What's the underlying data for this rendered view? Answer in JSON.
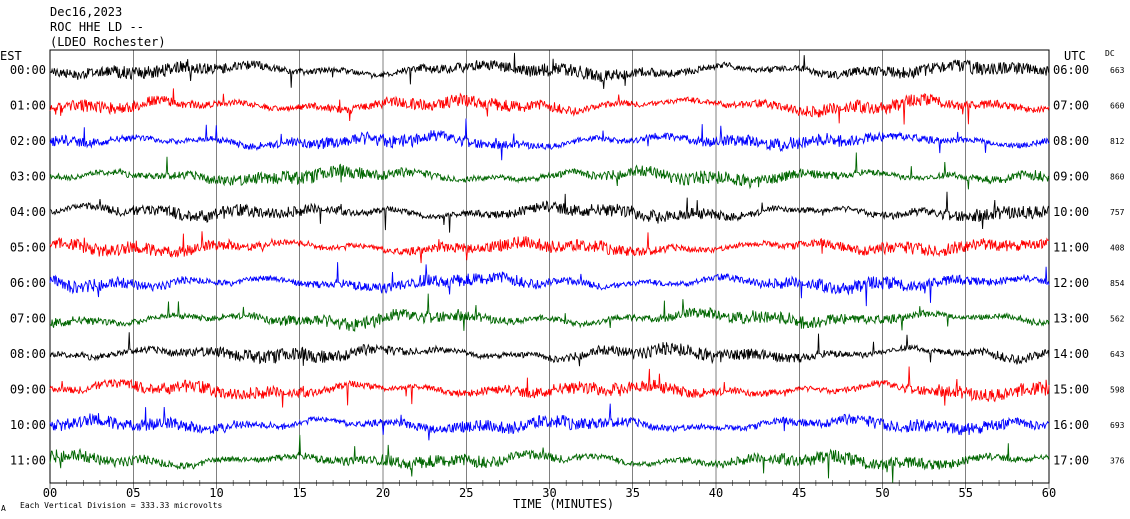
{
  "header": {
    "date": "Dec16,2023",
    "station": "ROC HHE LD --",
    "network": "(LDEO Rochester)"
  },
  "left_axis_title": "EST",
  "right_axis_title": "UTC",
  "dc_title": "DC",
  "footer": {
    "corner_mark": "A",
    "scale_note": "Each Vertical Division =  333.33 microvolts"
  },
  "colors": {
    "black": "#000000",
    "red": "#ff0000",
    "blue": "#0000ff",
    "green": "#006600"
  },
  "chart_data": {
    "type": "line",
    "title": "",
    "xlabel": "TIME (MINUTES)",
    "xlim": [
      0,
      60
    ],
    "x_ticks": [
      "00",
      "05",
      "10",
      "15",
      "20",
      "25",
      "30",
      "35",
      "40",
      "45",
      "50",
      "55",
      "60"
    ],
    "grid": true,
    "series": [
      {
        "est": "00:00",
        "utc": "06:00",
        "dc": "663",
        "color": "black"
      },
      {
        "est": "01:00",
        "utc": "07:00",
        "dc": "660",
        "color": "red"
      },
      {
        "est": "02:00",
        "utc": "08:00",
        "dc": "812",
        "color": "blue"
      },
      {
        "est": "03:00",
        "utc": "09:00",
        "dc": "860",
        "color": "green"
      },
      {
        "est": "04:00",
        "utc": "10:00",
        "dc": "757",
        "color": "black"
      },
      {
        "est": "05:00",
        "utc": "11:00",
        "dc": "408",
        "color": "red"
      },
      {
        "est": "06:00",
        "utc": "12:00",
        "dc": "854",
        "color": "blue"
      },
      {
        "est": "07:00",
        "utc": "13:00",
        "dc": "562",
        "color": "green"
      },
      {
        "est": "08:00",
        "utc": "14:00",
        "dc": "643",
        "color": "black"
      },
      {
        "est": "09:00",
        "utc": "15:00",
        "dc": "598",
        "color": "red"
      },
      {
        "est": "10:00",
        "utc": "16:00",
        "dc": "693",
        "color": "blue"
      },
      {
        "est": "11:00",
        "utc": "17:00",
        "dc": "376",
        "color": "green"
      }
    ]
  }
}
